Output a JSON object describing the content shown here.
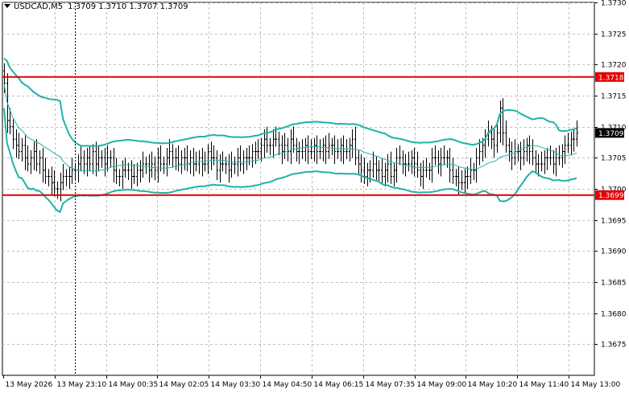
{
  "chart_data": {
    "type": "candlestick",
    "symbol": "USDCAD,M5",
    "ohlc_readout": [
      "1.3709",
      "1.3710",
      "1.3707",
      "1.3709"
    ],
    "ylim": [
      1.367,
      1.373
    ],
    "yticks": [
      "1.3730",
      "1.3725",
      "1.3720",
      "1.3715",
      "1.3710",
      "1.3705",
      "1.3700",
      "1.3695",
      "1.3690",
      "1.3685",
      "1.3680",
      "1.3675"
    ],
    "xticks": [
      "13 May 2026",
      "13 May 23:10",
      "14 May 00:35",
      "14 May 02:05",
      "14 May 03:30",
      "14 May 04:50",
      "14 May 06:15",
      "14 May 07:35",
      "14 May 09:00",
      "14 May 10:20",
      "14 May 11:40",
      "14 May 13:00"
    ],
    "horizontal_lines": [
      {
        "value": 1.3718,
        "label": "1.3718"
      },
      {
        "value": 1.3699,
        "label": "1.3699"
      }
    ],
    "current_price": {
      "value": 1.3709,
      "label": "1.3709"
    },
    "grid": true,
    "crosshair_bar": 24,
    "colors": {
      "background": "#ffffff",
      "candles": "#000000",
      "bands": "#20b2aa",
      "levels": "#e00000",
      "grid": "#c0c0c0",
      "label_text": "#ffffff",
      "price_tag": "#000000"
    },
    "closes": [
      1.3717,
      1.3711,
      1.371,
      1.3708,
      1.3707,
      1.3706,
      1.3707,
      1.3705,
      1.3704,
      1.3705,
      1.3706,
      1.3704,
      1.3705,
      1.3703,
      1.3702,
      1.3702,
      1.3701,
      1.37,
      1.37,
      1.3701,
      1.3702,
      1.3702,
      1.3702,
      1.3703,
      1.3703,
      1.3704,
      1.3705,
      1.3704,
      1.3705,
      1.3704,
      1.3706,
      1.3704,
      1.3705,
      1.3705,
      1.3704,
      1.3705,
      1.3705,
      1.3703,
      1.3702,
      1.3702,
      1.3703,
      1.3703,
      1.3703,
      1.3702,
      1.3702,
      1.3703,
      1.3703,
      1.3704,
      1.3704,
      1.3703,
      1.3704,
      1.3703,
      1.3705,
      1.3704,
      1.3704,
      1.3705,
      1.3706,
      1.3705,
      1.3705,
      1.3704,
      1.3705,
      1.3705,
      1.3704,
      1.3705,
      1.3704,
      1.3704,
      1.3705,
      1.3704,
      1.3704,
      1.3706,
      1.3705,
      1.3705,
      1.3703,
      1.3704,
      1.3704,
      1.3704,
      1.3703,
      1.3704,
      1.3704,
      1.3705,
      1.3704,
      1.3705,
      1.3705,
      1.3705,
      1.3706,
      1.3706,
      1.3706,
      1.3707,
      1.3708,
      1.3707,
      1.3707,
      1.3708,
      1.3708,
      1.3707,
      1.3706,
      1.3707,
      1.3706,
      1.3708,
      1.3707,
      1.3706,
      1.3706,
      1.3706,
      1.3707,
      1.3706,
      1.3706,
      1.3707,
      1.3706,
      1.3706,
      1.3707,
      1.3706,
      1.3707,
      1.3707,
      1.3706,
      1.3706,
      1.3707,
      1.3706,
      1.3706,
      1.3707,
      1.3708,
      1.3705,
      1.3704,
      1.3703,
      1.3702,
      1.3703,
      1.3703,
      1.3704,
      1.3703,
      1.3703,
      1.3702,
      1.3703,
      1.3704,
      1.3702,
      1.3703,
      1.3705,
      1.3705,
      1.3704,
      1.3704,
      1.3704,
      1.3705,
      1.3704,
      1.3703,
      1.3702,
      1.3703,
      1.3703,
      1.3703,
      1.3705,
      1.3705,
      1.3704,
      1.3705,
      1.3705,
      1.3705,
      1.3703,
      1.3702,
      1.3702,
      1.3701,
      1.3701,
      1.3702,
      1.3702,
      1.3703,
      1.3703,
      1.3705,
      1.3706,
      1.3707,
      1.3708,
      1.3709,
      1.3708,
      1.3707,
      1.3709,
      1.3713,
      1.3709,
      1.3707,
      1.3706,
      1.3705,
      1.3706,
      1.3706,
      1.3705,
      1.3706,
      1.3707,
      1.3706,
      1.3705,
      1.3704,
      1.3704,
      1.3704,
      1.3705,
      1.3705,
      1.3705,
      1.3704,
      1.3705,
      1.3705,
      1.3706,
      1.3707,
      1.3707,
      1.3708,
      1.3708,
      1.3709
    ]
  }
}
